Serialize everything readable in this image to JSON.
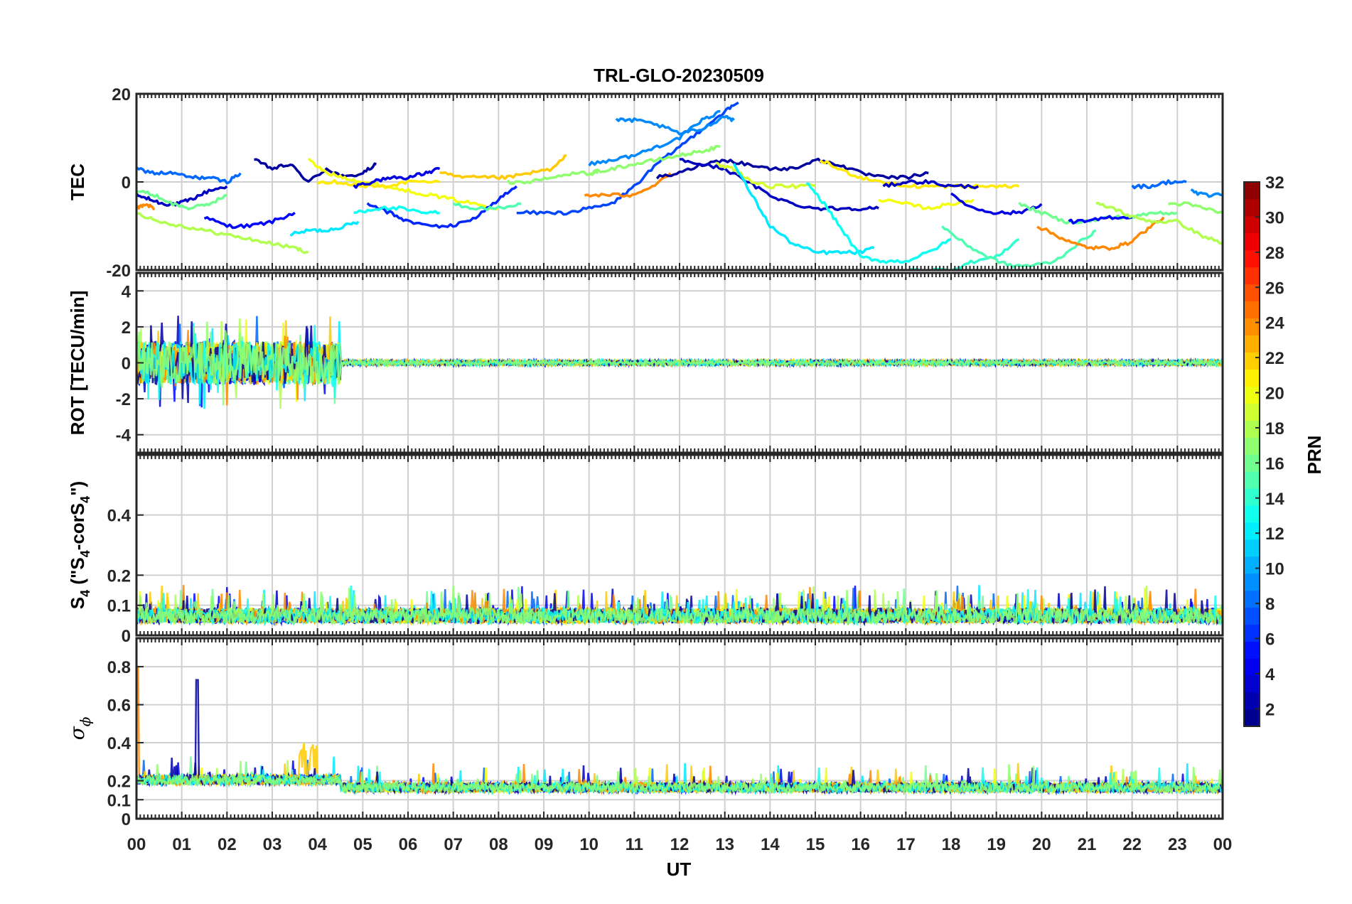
{
  "chart_data": {
    "type": "line",
    "title": "TRL-GLO-20230509",
    "xlabel": "UT",
    "x_ticks": [
      "00",
      "01",
      "02",
      "03",
      "04",
      "05",
      "06",
      "07",
      "08",
      "09",
      "10",
      "11",
      "12",
      "13",
      "14",
      "15",
      "16",
      "17",
      "18",
      "19",
      "20",
      "21",
      "22",
      "23",
      "00"
    ],
    "xlim": [
      0,
      24
    ],
    "grid": true,
    "colorbar": {
      "label": "PRN",
      "limits": [
        1,
        32
      ],
      "ticks": [
        "2",
        "4",
        "6",
        "8",
        "10",
        "12",
        "14",
        "16",
        "18",
        "20",
        "22",
        "24",
        "26",
        "28",
        "30",
        "32"
      ],
      "colormap": "jet"
    },
    "panels": [
      {
        "name": "tec",
        "ylabel": "TEC",
        "ylim": [
          -20,
          20
        ],
        "yticks": [
          "-20",
          "0",
          "20"
        ],
        "series": [
          {
            "prn": 3,
            "x": [
              0.0,
              0.3,
              0.6,
              0.9,
              1.2,
              1.6,
              2.0
            ],
            "y": [
              -3,
              -4,
              -5,
              -5,
              -4,
              -2,
              -1
            ]
          },
          {
            "prn": 5,
            "x": [
              1.5,
              2.0,
              2.5,
              3.0,
              3.5
            ],
            "y": [
              -8,
              -10,
              -10,
              -9,
              -7
            ]
          },
          {
            "prn": 2,
            "x": [
              2.6,
              3.0,
              3.4,
              3.8,
              4.2,
              4.6,
              5.0,
              5.3
            ],
            "y": [
              5,
              3,
              4,
              0,
              3,
              1,
              2,
              4
            ]
          },
          {
            "prn": 8,
            "x": [
              0.0,
              0.4,
              0.8,
              1.2,
              1.6,
              2.0,
              2.3
            ],
            "y": [
              3,
              2,
              2,
              1,
              1,
              0,
              2
            ]
          },
          {
            "prn": 12,
            "x": [
              3.4,
              3.8,
              4.2,
              4.6,
              4.9
            ],
            "y": [
              -12,
              -11,
              -11,
              -10,
              -9
            ]
          },
          {
            "prn": 18,
            "x": [
              0.0,
              0.5,
              1.0,
              1.5,
              2.0,
              2.5,
              3.0,
              3.5,
              3.8
            ],
            "y": [
              -7,
              -9,
              -10,
              -11,
              -12,
              -13,
              -14,
              -15,
              -16
            ]
          },
          {
            "prn": 16,
            "x": [
              0.0,
              0.4,
              0.8,
              1.2,
              1.6,
              2.0
            ],
            "y": [
              -2,
              -3,
              -5,
              -6,
              -5,
              -3
            ]
          },
          {
            "prn": 24,
            "x": [
              0.0,
              0.2,
              0.4
            ],
            "y": [
              -6,
              -5,
              -6
            ]
          },
          {
            "prn": 20,
            "x": [
              3.8,
              4.2,
              4.6,
              5.0,
              5.5,
              6.0,
              6.5,
              7.0,
              7.5,
              8.0
            ],
            "y": [
              5,
              2,
              1,
              0,
              -1,
              -2,
              -3,
              -4,
              -5,
              -6
            ]
          },
          {
            "prn": 21,
            "x": [
              4.0,
              4.5,
              5.0,
              5.5,
              6.0,
              6.7
            ],
            "y": [
              0,
              0,
              -1,
              -1,
              0,
              0
            ]
          },
          {
            "prn": 4,
            "x": [
              4.8,
              5.2,
              5.6,
              6.0,
              6.4,
              6.7
            ],
            "y": [
              -1,
              0,
              1,
              1,
              2,
              3
            ]
          },
          {
            "prn": 6,
            "x": [
              5.1,
              5.6,
              6.0,
              6.5,
              7.0,
              7.5,
              8.0,
              8.4
            ],
            "y": [
              -5,
              -7,
              -9,
              -10,
              -10,
              -8,
              -4,
              -1
            ]
          },
          {
            "prn": 13,
            "x": [
              4.8,
              5.3,
              5.8,
              6.3,
              6.7
            ],
            "y": [
              -7,
              -6,
              -6,
              -7,
              -7
            ]
          },
          {
            "prn": 15,
            "x": [
              7.0,
              7.5,
              8.0,
              8.5
            ],
            "y": [
              -5,
              -6,
              -6,
              -5
            ]
          },
          {
            "prn": 22,
            "x": [
              6.7,
              7.2,
              7.7,
              8.2,
              8.7,
              9.2,
              9.5
            ],
            "y": [
              2,
              1,
              1,
              1,
              2,
              3,
              6
            ]
          },
          {
            "prn": 17,
            "x": [
              8.2,
              8.7,
              9.2,
              9.7,
              10.2
            ],
            "y": [
              0,
              0,
              1,
              2,
              2
            ]
          },
          {
            "prn": 7,
            "x": [
              8.4,
              9.0,
              9.5,
              10.0,
              10.5,
              11.0,
              11.5,
              12.0,
              12.5,
              13.0,
              13.3
            ],
            "y": [
              -7,
              -7,
              -7,
              -6,
              -5,
              -1,
              4,
              8,
              12,
              16,
              18
            ]
          },
          {
            "prn": 24,
            "x": [
              9.9,
              10.4,
              10.9,
              11.4,
              11.8
            ],
            "y": [
              -3,
              -3,
              -3,
              -1,
              2
            ]
          },
          {
            "prn": 9,
            "x": [
              10.6,
              11.0,
              11.5,
              12.0,
              12.5,
              13.0,
              13.2
            ],
            "y": [
              14,
              14,
              13,
              11,
              12,
              15,
              14
            ]
          },
          {
            "prn": 9,
            "x": [
              10.0,
              10.5,
              11.0,
              11.5,
              12.0,
              12.5,
              12.9
            ],
            "y": [
              4,
              5,
              6,
              8,
              10,
              14,
              16
            ]
          },
          {
            "prn": 17,
            "x": [
              10.0,
              10.5,
              11.0,
              11.5,
              12.0,
              12.5,
              12.9
            ],
            "y": [
              2,
              3,
              4,
              5,
              6,
              7,
              8
            ]
          },
          {
            "prn": 2,
            "x": [
              11.5,
              12.0,
              12.5,
              13.0,
              13.5,
              14.0,
              14.5,
              15.0,
              15.5,
              16.0,
              16.5,
              17.0,
              17.5
            ],
            "y": [
              1,
              2,
              4,
              5,
              4,
              3,
              3,
              5,
              4,
              2,
              1,
              1,
              2
            ]
          },
          {
            "prn": 3,
            "x": [
              12.0,
              12.5,
              13.0,
              13.5,
              14.0,
              14.5,
              15.0,
              15.5,
              16.0,
              16.4
            ],
            "y": [
              5,
              4,
              3,
              0,
              -3,
              -5,
              -6,
              -6,
              -6,
              -6
            ]
          },
          {
            "prn": 19,
            "x": [
              12.8,
              13.2,
              13.6,
              14.0,
              14.5,
              15.0
            ],
            "y": [
              4,
              3,
              0,
              -1,
              -1,
              -1
            ]
          },
          {
            "prn": 21,
            "x": [
              15.1,
              15.5,
              16.0,
              16.5,
              17.0,
              17.5,
              18.0,
              18.5,
              19.0,
              19.5
            ],
            "y": [
              5,
              3,
              1,
              0,
              -1,
              -1,
              -1,
              -1,
              -1,
              -1
            ]
          },
          {
            "prn": 3,
            "x": [
              16.5,
              17.0,
              17.5,
              18.0,
              18.6
            ],
            "y": [
              -1,
              0,
              0,
              -1,
              -1
            ]
          },
          {
            "prn": 20,
            "x": [
              16.4,
              17.0,
              17.5,
              18.0,
              18.5
            ],
            "y": [
              -4,
              -5,
              -6,
              -5,
              -4
            ]
          },
          {
            "prn": 4,
            "x": [
              18.0,
              18.5,
              19.0,
              19.5,
              20.0
            ],
            "y": [
              -3,
              -6,
              -7,
              -7,
              -5
            ]
          },
          {
            "prn": 12,
            "x": [
              13.2,
              13.6,
              14.0,
              14.5,
              15.0,
              15.5,
              16.0,
              16.3
            ],
            "y": [
              4,
              -3,
              -10,
              -14,
              -16,
              -16,
              -16,
              -15
            ]
          },
          {
            "prn": 13,
            "x": [
              14.8,
              15.2,
              15.6,
              16.0,
              16.5,
              17.0,
              17.5,
              18.0
            ],
            "y": [
              0,
              -5,
              -11,
              -17,
              -18,
              -18,
              -16,
              -13
            ]
          },
          {
            "prn": 14,
            "x": [
              17.0,
              17.5,
              18.0,
              18.5,
              19.0,
              19.5
            ],
            "y": [
              -20,
              -20,
              -20,
              -18,
              -17,
              -13
            ]
          },
          {
            "prn": 15,
            "x": [
              17.8,
              18.3,
              18.8,
              19.3,
              19.8,
              20.3,
              20.8,
              21.2
            ],
            "y": [
              -10,
              -14,
              -17,
              -19,
              -19,
              -18,
              -14,
              -11
            ]
          },
          {
            "prn": 16,
            "x": [
              19.5,
              20.0,
              20.5,
              21.0,
              21.5,
              22.0,
              22.5,
              23.0
            ],
            "y": [
              -5,
              -7,
              -9,
              -9,
              -8,
              -8,
              -7,
              -7
            ]
          },
          {
            "prn": 24,
            "x": [
              19.9,
              20.3,
              20.7,
              21.1,
              21.5,
              21.9,
              22.3,
              22.7
            ],
            "y": [
              -10,
              -12,
              -14,
              -15,
              -15,
              -14,
              -11,
              -8
            ]
          },
          {
            "prn": 5,
            "x": [
              20.6,
              21.0,
              21.5,
              22.0
            ],
            "y": [
              -9,
              -9,
              -8,
              -8
            ]
          },
          {
            "prn": 8,
            "x": [
              22.0,
              22.4,
              22.8,
              23.2
            ],
            "y": [
              -1,
              -1,
              0,
              0
            ]
          },
          {
            "prn": 18,
            "x": [
              21.2,
              21.6,
              22.0,
              22.5,
              23.0,
              23.5,
              24.0
            ],
            "y": [
              -5,
              -6,
              -8,
              -9,
              -9,
              -12,
              -14
            ]
          },
          {
            "prn": 17,
            "x": [
              22.8,
              23.2,
              23.6,
              24.0
            ],
            "y": [
              -5,
              -5,
              -6,
              -7
            ]
          },
          {
            "prn": 9,
            "x": [
              23.3,
              23.6,
              24.0
            ],
            "y": [
              -2,
              -3,
              -3
            ]
          }
        ]
      },
      {
        "name": "rot",
        "ylabel": "ROT [TECU/min]",
        "ylim": [
          -5,
          5
        ],
        "yticks": [
          "-4",
          "-2",
          "0",
          "2",
          "4"
        ]
      },
      {
        "name": "s4",
        "ylabel_main": "S",
        "ylabel_sub": "4",
        "ylabel_rest": " (\"S",
        "ylabel_sub2": "4",
        "ylabel_rest2": "-corS",
        "ylabel_sub3": "4",
        "ylabel_end": "\")",
        "ylim": [
          0,
          0.6
        ],
        "yticks": [
          "0",
          "0.1",
          "0.2",
          "0.4"
        ]
      },
      {
        "name": "sigma_phi",
        "ylabel_main": "σ",
        "ylabel_sub": "ϕ",
        "ylim": [
          0,
          0.95
        ],
        "yticks": [
          "0",
          "0.1",
          "0.2",
          "0.4",
          "0.6",
          "0.8"
        ]
      }
    ]
  }
}
